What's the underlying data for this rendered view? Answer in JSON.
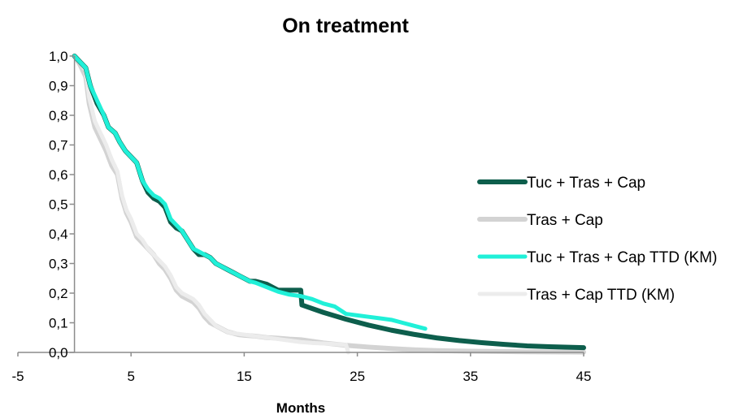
{
  "chart_data": {
    "type": "line",
    "title": "On treatment",
    "xlabel": "Months",
    "ylabel": "",
    "xlim": [
      -5,
      45
    ],
    "ylim": [
      0,
      1
    ],
    "xticks": [
      "-5",
      "5",
      "15",
      "25",
      "35",
      "45"
    ],
    "xtick_values": [
      -5,
      5,
      15,
      25,
      35,
      45
    ],
    "yticks": [
      "0,0",
      "0,1",
      "0,2",
      "0,3",
      "0,4",
      "0,5",
      "0,6",
      "0,7",
      "0,8",
      "0,9",
      "1,0"
    ],
    "ytick_values": [
      0,
      0.1,
      0.2,
      0.3,
      0.4,
      0.5,
      0.6,
      0.7,
      0.8,
      0.9,
      1.0
    ],
    "grid": false,
    "legend_position": "right",
    "series": [
      {
        "name": "Tuc + Tras + Cap",
        "color": "#0d5e4c",
        "width": 6,
        "step": false,
        "points": [
          [
            0,
            1.0
          ],
          [
            0.5,
            0.98
          ],
          [
            1,
            0.96
          ],
          [
            1.4,
            0.9
          ],
          [
            2,
            0.84
          ],
          [
            2.6,
            0.8
          ],
          [
            3,
            0.76
          ],
          [
            3.6,
            0.74
          ],
          [
            4,
            0.71
          ],
          [
            4.5,
            0.68
          ],
          [
            5,
            0.66
          ],
          [
            5.5,
            0.64
          ],
          [
            6,
            0.58
          ],
          [
            6.5,
            0.54
          ],
          [
            7,
            0.52
          ],
          [
            7.5,
            0.51
          ],
          [
            8,
            0.49
          ],
          [
            8.5,
            0.44
          ],
          [
            9,
            0.42
          ],
          [
            9.5,
            0.41
          ],
          [
            10,
            0.38
          ],
          [
            10.5,
            0.35
          ],
          [
            11,
            0.33
          ],
          [
            11.5,
            0.33
          ],
          [
            12,
            0.32
          ],
          [
            12.5,
            0.3
          ],
          [
            13,
            0.29
          ],
          [
            13.5,
            0.28
          ],
          [
            14,
            0.27
          ],
          [
            14.5,
            0.26
          ],
          [
            15,
            0.25
          ],
          [
            15.5,
            0.24
          ],
          [
            16,
            0.24
          ],
          [
            17,
            0.23
          ],
          [
            18,
            0.21
          ],
          [
            19,
            0.21
          ],
          [
            20,
            0.21
          ],
          [
            20.1,
            0.16
          ],
          [
            22,
            0.135
          ],
          [
            24,
            0.112
          ],
          [
            26,
            0.092
          ],
          [
            28,
            0.075
          ],
          [
            30,
            0.061
          ],
          [
            32,
            0.049
          ],
          [
            34,
            0.04
          ],
          [
            36,
            0.033
          ],
          [
            38,
            0.027
          ],
          [
            40,
            0.022
          ],
          [
            42,
            0.019
          ],
          [
            45,
            0.016
          ]
        ]
      },
      {
        "name": "Tras + Cap",
        "color": "#d3d3d3",
        "width": 6,
        "step": false,
        "points": [
          [
            0,
            1.0
          ],
          [
            0.5,
            0.97
          ],
          [
            1,
            0.93
          ],
          [
            1.3,
            0.84
          ],
          [
            1.8,
            0.76
          ],
          [
            2.3,
            0.72
          ],
          [
            2.8,
            0.68
          ],
          [
            3.3,
            0.63
          ],
          [
            3.8,
            0.6
          ],
          [
            4.2,
            0.52
          ],
          [
            4.6,
            0.47
          ],
          [
            5,
            0.44
          ],
          [
            5.5,
            0.39
          ],
          [
            6,
            0.37
          ],
          [
            6.5,
            0.35
          ],
          [
            7,
            0.33
          ],
          [
            7.5,
            0.3
          ],
          [
            8,
            0.28
          ],
          [
            8.5,
            0.25
          ],
          [
            9,
            0.21
          ],
          [
            9.5,
            0.19
          ],
          [
            10,
            0.18
          ],
          [
            10.5,
            0.17
          ],
          [
            11,
            0.15
          ],
          [
            11.5,
            0.12
          ],
          [
            12,
            0.1
          ],
          [
            12.5,
            0.09
          ],
          [
            13,
            0.08
          ],
          [
            13.5,
            0.07
          ],
          [
            14,
            0.065
          ],
          [
            14.5,
            0.06
          ],
          [
            15,
            0.058
          ],
          [
            16,
            0.055
          ],
          [
            17,
            0.05
          ],
          [
            18,
            0.048
          ],
          [
            19,
            0.045
          ],
          [
            20,
            0.043
          ],
          [
            22,
            0.032
          ],
          [
            24,
            0.024
          ],
          [
            26,
            0.018
          ],
          [
            28,
            0.013
          ],
          [
            30,
            0.009
          ],
          [
            32,
            0.006
          ],
          [
            35,
            0.004
          ],
          [
            40,
            0.002
          ],
          [
            45,
            0.001
          ]
        ]
      },
      {
        "name": "Tuc + Tras + Cap TTD (KM)",
        "color": "#20f0d8",
        "width": 5,
        "step": false,
        "points": [
          [
            0,
            1.0
          ],
          [
            0.5,
            0.98
          ],
          [
            1,
            0.96
          ],
          [
            1.4,
            0.9
          ],
          [
            2,
            0.85
          ],
          [
            2.6,
            0.8
          ],
          [
            3,
            0.76
          ],
          [
            3.6,
            0.74
          ],
          [
            4,
            0.71
          ],
          [
            4.5,
            0.68
          ],
          [
            5,
            0.66
          ],
          [
            5.5,
            0.64
          ],
          [
            6,
            0.58
          ],
          [
            6.5,
            0.55
          ],
          [
            7,
            0.53
          ],
          [
            7.5,
            0.52
          ],
          [
            8,
            0.5
          ],
          [
            8.5,
            0.45
          ],
          [
            9,
            0.43
          ],
          [
            9.5,
            0.41
          ],
          [
            10,
            0.38
          ],
          [
            10.5,
            0.35
          ],
          [
            11,
            0.34
          ],
          [
            11.5,
            0.33
          ],
          [
            12,
            0.32
          ],
          [
            12.5,
            0.3
          ],
          [
            13,
            0.29
          ],
          [
            13.5,
            0.28
          ],
          [
            14,
            0.27
          ],
          [
            14.5,
            0.26
          ],
          [
            15,
            0.25
          ],
          [
            15.5,
            0.24
          ],
          [
            16,
            0.235
          ],
          [
            17,
            0.22
          ],
          [
            18,
            0.205
          ],
          [
            19,
            0.195
          ],
          [
            20,
            0.19
          ],
          [
            21,
            0.18
          ],
          [
            22,
            0.165
          ],
          [
            23,
            0.155
          ],
          [
            24,
            0.13
          ],
          [
            25,
            0.125
          ],
          [
            26,
            0.12
          ],
          [
            27,
            0.115
          ],
          [
            28,
            0.11
          ],
          [
            29,
            0.1
          ],
          [
            30,
            0.09
          ],
          [
            31,
            0.08
          ]
        ]
      },
      {
        "name": "Tras + Cap TTD (KM)",
        "color": "#ececec",
        "width": 5,
        "step": false,
        "points": [
          [
            0,
            1.0
          ],
          [
            0.5,
            0.98
          ],
          [
            1,
            0.95
          ],
          [
            1.3,
            0.86
          ],
          [
            1.8,
            0.78
          ],
          [
            2.3,
            0.74
          ],
          [
            2.8,
            0.7
          ],
          [
            3.3,
            0.65
          ],
          [
            3.8,
            0.61
          ],
          [
            4.2,
            0.53
          ],
          [
            4.6,
            0.48
          ],
          [
            5,
            0.45
          ],
          [
            5.5,
            0.4
          ],
          [
            6,
            0.38
          ],
          [
            6.5,
            0.35
          ],
          [
            7,
            0.33
          ],
          [
            7.5,
            0.31
          ],
          [
            8,
            0.29
          ],
          [
            8.5,
            0.26
          ],
          [
            9,
            0.22
          ],
          [
            9.5,
            0.2
          ],
          [
            10,
            0.19
          ],
          [
            10.5,
            0.18
          ],
          [
            11,
            0.16
          ],
          [
            11.5,
            0.13
          ],
          [
            12,
            0.11
          ],
          [
            12.5,
            0.09
          ],
          [
            13,
            0.08
          ],
          [
            13.5,
            0.07
          ],
          [
            14,
            0.065
          ],
          [
            15,
            0.06
          ],
          [
            16,
            0.055
          ],
          [
            17,
            0.05
          ],
          [
            18,
            0.045
          ],
          [
            19,
            0.04
          ],
          [
            20,
            0.035
          ],
          [
            21,
            0.032
          ],
          [
            22,
            0.03
          ],
          [
            23,
            0.028
          ],
          [
            24,
            0.025
          ],
          [
            24.2,
            0.0
          ]
        ]
      }
    ]
  }
}
